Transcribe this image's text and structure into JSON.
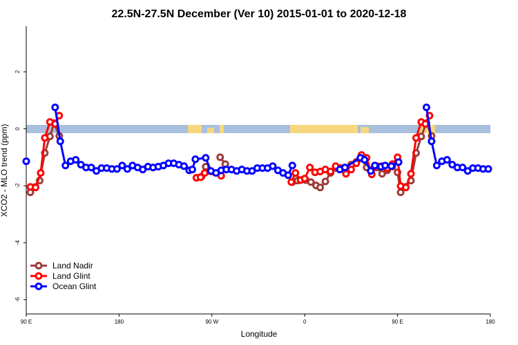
{
  "chart_data": {
    "type": "line",
    "title": "22.5N-27.5N December (Ver 10)   2015-01-01 to 2020-12-18",
    "xlabel": "Longitude",
    "ylabel": "XCO2 - MLO trend (ppm)",
    "xlim": [
      90,
      540
    ],
    "ylim": [
      -6.5,
      3.6
    ],
    "xticks": [
      {
        "value": 90,
        "label": "90 E"
      },
      180,
      {
        "value": 270,
        "label": "90 W"
      },
      {
        "value": 360,
        "label": "0"
      },
      {
        "value": 450,
        "label": "90 E"
      },
      {
        "value": 540,
        "label": "180"
      }
    ],
    "yticks": [
      2,
      0,
      -2,
      -4,
      -6
    ],
    "legend": "bottomleft",
    "series": [
      {
        "name": "Land Nadir",
        "color": "#9e3a3a",
        "x": [
          94,
          99,
          103,
          108,
          113,
          117,
          122,
          200,
          255,
          260,
          264,
          270,
          278,
          283,
          320,
          348,
          353,
          361,
          366,
          371,
          375,
          380,
          385,
          390,
          400,
          405,
          410,
          415,
          420,
          430,
          435,
          440,
          445,
          450,
          453,
          458,
          463,
          468,
          473,
          478,
          483
        ],
        "values": [
          -2.23,
          -2.04,
          -1.82,
          -0.85,
          -0.27,
          0.2,
          -0.25,
          null,
          -1.72,
          -1.68,
          -1.33,
          null,
          -1.0,
          -1.24,
          null,
          -1.87,
          -1.82,
          -1.8,
          -1.87,
          -1.99,
          -2.06,
          -1.85,
          -1.55,
          -1.38,
          -1.41,
          -1.26,
          -1.16,
          -1.04,
          -1.36,
          -1.36,
          -1.58,
          -1.46,
          -1.33,
          -1.53,
          -2.23,
          -2.04,
          -1.82,
          -0.85,
          -0.27,
          0.2,
          -0.25
        ]
      },
      {
        "name": "Land Glint",
        "color": "#ff0000",
        "x": [
          94,
          99,
          104,
          108,
          113,
          118,
          122,
          200,
          255,
          259,
          263,
          279,
          320,
          347,
          351,
          356,
          360,
          365,
          370,
          375,
          380,
          385,
          390,
          395,
          400,
          405,
          410,
          415,
          420,
          425,
          430,
          435,
          440,
          445,
          450,
          453,
          458,
          463,
          468,
          473,
          477,
          481
        ],
        "values": [
          -2.04,
          -2.06,
          -1.55,
          -0.32,
          0.24,
          0.17,
          0.46,
          null,
          -1.72,
          -1.7,
          -1.55,
          -1.65,
          null,
          -1.87,
          -1.55,
          -1.8,
          -1.75,
          -1.36,
          -1.53,
          -1.5,
          -1.43,
          -1.5,
          -1.31,
          -1.38,
          -1.58,
          -1.43,
          -1.21,
          -0.92,
          -1.02,
          -1.6,
          -1.31,
          -1.31,
          -1.38,
          -1.24,
          -1.0,
          -2.01,
          -2.06,
          -1.58,
          -0.32,
          0.24,
          0.17,
          0.46
        ]
      },
      {
        "name": "Ocean Glint",
        "color": "#0000ff",
        "x": [
          90,
          104,
          118,
          123,
          128,
          133,
          138,
          143,
          148,
          153,
          158,
          163,
          168,
          173,
          178,
          183,
          188,
          193,
          198,
          203,
          208,
          213,
          218,
          223,
          228,
          233,
          238,
          243,
          248,
          251,
          254,
          264,
          269,
          274,
          279,
          284,
          289,
          294,
          299,
          304,
          309,
          314,
          319,
          324,
          329,
          334,
          339,
          344,
          348,
          370,
          394,
          399,
          414,
          418,
          424,
          428,
          434,
          438,
          444,
          451,
          465,
          478,
          483,
          488,
          493,
          498,
          503,
          508,
          513,
          518,
          523,
          528,
          533,
          538
        ],
        "values": [
          -1.14,
          null,
          0.75,
          -0.44,
          -1.29,
          -1.14,
          -1.09,
          -1.26,
          -1.36,
          -1.36,
          -1.48,
          -1.38,
          -1.38,
          -1.41,
          -1.41,
          -1.29,
          -1.41,
          -1.29,
          -1.36,
          -1.43,
          -1.33,
          -1.36,
          -1.33,
          -1.29,
          -1.21,
          -1.21,
          -1.26,
          -1.31,
          -1.46,
          -1.43,
          -1.07,
          -1.02,
          -1.48,
          -1.55,
          -1.46,
          -1.43,
          -1.43,
          -1.48,
          -1.43,
          -1.48,
          -1.48,
          -1.38,
          -1.38,
          -1.38,
          -1.31,
          -1.46,
          -1.55,
          -1.63,
          -1.29,
          null,
          -1.43,
          -1.36,
          -1.02,
          -1.09,
          -1.48,
          -1.29,
          -1.33,
          -1.29,
          -1.31,
          -1.17,
          null,
          0.75,
          -0.44,
          -1.29,
          -1.14,
          -1.09,
          -1.26,
          -1.36,
          -1.36,
          -1.48,
          -1.38,
          -1.38,
          -1.41,
          -1.41
        ]
      }
    ]
  }
}
